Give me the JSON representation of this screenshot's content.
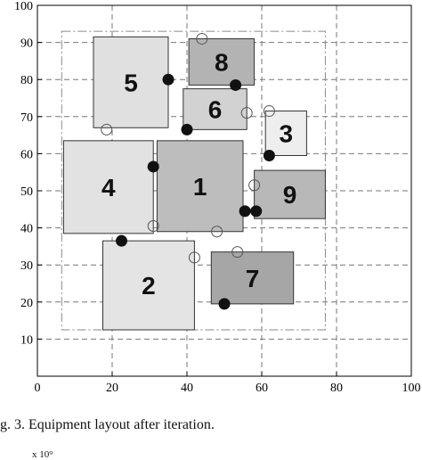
{
  "chart_data": {
    "type": "scatter",
    "title": "",
    "xlabel": "",
    "ylabel": "",
    "xlim": [
      0,
      100
    ],
    "ylim": [
      0,
      100
    ],
    "xticks": [
      0,
      20,
      40,
      60,
      80,
      100
    ],
    "yticks": [
      10,
      20,
      30,
      40,
      50,
      60,
      70,
      80,
      90,
      100
    ],
    "grid": true,
    "grid_style": "dashed",
    "boundary": {
      "x0": 6.5,
      "y0": 12.5,
      "x1": 77,
      "y1": 93
    },
    "equipment": [
      {
        "label": "1",
        "x0": 32,
        "y0": 39,
        "x1": 55,
        "y1": 63.5,
        "color": "#bdbdbd"
      },
      {
        "label": "2",
        "x0": 17.5,
        "y0": 12.5,
        "x1": 42,
        "y1": 36.5,
        "color": "#e4e4e4"
      },
      {
        "label": "3",
        "x0": 61,
        "y0": 59.5,
        "x1": 72,
        "y1": 71.5,
        "color": "#eeeeee"
      },
      {
        "label": "4",
        "x0": 7,
        "y0": 38.5,
        "x1": 31,
        "y1": 63.5,
        "color": "#e2e2e2"
      },
      {
        "label": "5",
        "x0": 15,
        "y0": 67,
        "x1": 35,
        "y1": 91.5,
        "color": "#e0e0e0"
      },
      {
        "label": "6",
        "x0": 39,
        "y0": 66.5,
        "x1": 56,
        "y1": 77.5,
        "color": "#d2d2d2"
      },
      {
        "label": "7",
        "x0": 46.5,
        "y0": 19.5,
        "x1": 68.5,
        "y1": 33.5,
        "color": "#a6a6a6"
      },
      {
        "label": "8",
        "x0": 40.5,
        "y0": 78.5,
        "x1": 58,
        "y1": 91,
        "color": "#b3b3b3"
      },
      {
        "label": "9",
        "x0": 58,
        "y0": 42.5,
        "x1": 77,
        "y1": 55.5,
        "color": "#b8b8b8"
      }
    ],
    "points_filled": [
      {
        "x": 35,
        "y": 80
      },
      {
        "x": 53,
        "y": 78.5
      },
      {
        "x": 40,
        "y": 66.5
      },
      {
        "x": 31,
        "y": 56.5
      },
      {
        "x": 62,
        "y": 59.5
      },
      {
        "x": 55.5,
        "y": 44.5
      },
      {
        "x": 58.5,
        "y": 44.5
      },
      {
        "x": 22.5,
        "y": 36.5
      },
      {
        "x": 50,
        "y": 19.5
      }
    ],
    "points_open": [
      {
        "x": 44,
        "y": 91
      },
      {
        "x": 18.5,
        "y": 66.5
      },
      {
        "x": 56,
        "y": 71
      },
      {
        "x": 62,
        "y": 71.5
      },
      {
        "x": 58,
        "y": 51.5
      },
      {
        "x": 31,
        "y": 40.5
      },
      {
        "x": 48,
        "y": 39
      },
      {
        "x": 42,
        "y": 32
      },
      {
        "x": 53.5,
        "y": 33.5
      }
    ]
  },
  "caption": "g. 3. Equipment layout after iteration.",
  "next_axis_exponent": "x 10⁹"
}
